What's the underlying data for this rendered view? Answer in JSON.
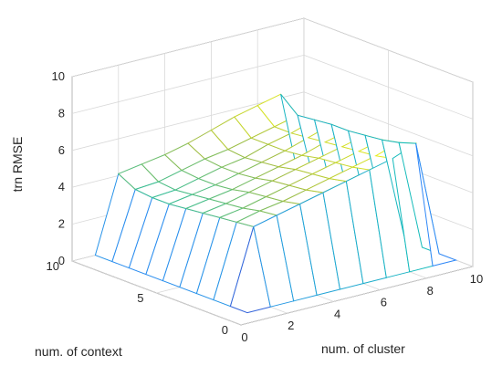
{
  "chart_data": {
    "type": "surface",
    "title": "",
    "xlabel": "num. of cluster",
    "ylabel": "num. of context",
    "zlabel": "trn RMSE",
    "xlim": [
      0,
      10
    ],
    "ylim": [
      0,
      10
    ],
    "zlim": [
      0,
      10
    ],
    "x_ticks": [
      "0",
      "2",
      "4",
      "6",
      "8",
      "10"
    ],
    "y_ticks": [
      "0",
      "5",
      "10"
    ],
    "z_ticks": [
      "0",
      "2",
      "4",
      "6",
      "8",
      "10"
    ],
    "grid": true,
    "colormap": "parula",
    "x": [
      1,
      2,
      3,
      4,
      5,
      6,
      7,
      8,
      9,
      10
    ],
    "y": [
      1,
      2,
      3,
      4,
      5,
      6,
      7,
      8,
      9,
      10
    ],
    "z": [
      [
        0,
        0,
        0,
        0,
        0,
        0,
        0,
        0,
        0,
        0
      ],
      [
        0,
        4.0,
        4.3,
        4.6,
        4.9,
        5.2,
        5.5,
        5.8,
        6.3,
        0
      ],
      [
        0,
        3.9,
        4.2,
        4.4,
        4.7,
        5.0,
        5.3,
        5.6,
        6.0,
        0
      ],
      [
        0,
        3.8,
        4.0,
        4.3,
        4.6,
        4.9,
        5.2,
        5.5,
        5.8,
        0
      ],
      [
        0,
        3.7,
        3.9,
        4.2,
        4.5,
        4.8,
        5.1,
        5.4,
        5.7,
        0
      ],
      [
        0,
        3.6,
        3.8,
        4.0,
        4.3,
        4.6,
        4.9,
        5.3,
        5.6,
        0
      ],
      [
        0,
        3.5,
        3.7,
        3.9,
        4.2,
        4.5,
        4.8,
        5.2,
        5.6,
        0
      ],
      [
        0,
        3.5,
        3.6,
        3.9,
        4.2,
        4.4,
        4.8,
        5.1,
        5.5,
        0
      ],
      [
        0,
        3.6,
        3.7,
        4.0,
        4.3,
        4.5,
        4.8,
        5.1,
        5.4,
        0
      ],
      [
        0,
        4.1,
        4.3,
        4.5,
        4.8,
        5.2,
        5.6,
        5.9,
        6.2,
        0
      ]
    ]
  }
}
